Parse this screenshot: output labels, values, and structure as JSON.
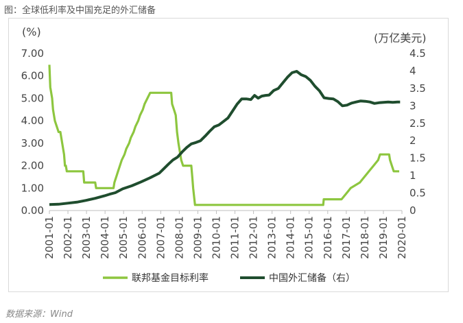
{
  "figure_title": "图：全球低利率及中国充足的外汇储备",
  "source": "数据来源：Wind",
  "colors": {
    "fed": "#8dc63f",
    "reserves": "#1f4d2e"
  },
  "chart_data": {
    "type": "line",
    "title": "",
    "left_axis": {
      "unit": "(%)",
      "min": 0,
      "max": 7,
      "ticks": [
        "0.00",
        "1.00",
        "2.00",
        "3.00",
        "4.00",
        "5.00",
        "6.00",
        "7.00"
      ]
    },
    "right_axis": {
      "unit": "(万亿美元)",
      "min": 0,
      "max": 4.5,
      "ticks": [
        "0",
        "0.5",
        "1",
        "1.5",
        "2",
        "2.5",
        "3",
        "3.5",
        "4",
        "4.5"
      ]
    },
    "x_ticks": [
      "2001-01",
      "2002-01",
      "2003-01",
      "2004-01",
      "2005-01",
      "2006-01",
      "2007-01",
      "2008-01",
      "2009-01",
      "2010-01",
      "2011-01",
      "2012-01",
      "2013-01",
      "2014-01",
      "2015-01",
      "2016-01",
      "2017-01",
      "2018-01",
      "2019-01",
      "2020-01"
    ],
    "x_range": [
      2001.0,
      2020.25
    ],
    "legend": [
      "联邦基金目标利率",
      "中国外汇储备（右）"
    ],
    "series": [
      {
        "name": "联邦基金目标利率",
        "axis": "left",
        "points": [
          [
            2001.0,
            6.5
          ],
          [
            2001.05,
            5.5
          ],
          [
            2001.15,
            5.0
          ],
          [
            2001.2,
            4.5
          ],
          [
            2001.3,
            4.0
          ],
          [
            2001.4,
            3.75
          ],
          [
            2001.5,
            3.5
          ],
          [
            2001.6,
            3.5
          ],
          [
            2001.7,
            3.0
          ],
          [
            2001.8,
            2.5
          ],
          [
            2001.85,
            2.0
          ],
          [
            2001.9,
            2.0
          ],
          [
            2001.95,
            1.75
          ],
          [
            2002.85,
            1.75
          ],
          [
            2002.9,
            1.25
          ],
          [
            2003.5,
            1.25
          ],
          [
            2003.55,
            1.0
          ],
          [
            2004.5,
            1.0
          ],
          [
            2004.55,
            1.25
          ],
          [
            2004.65,
            1.5
          ],
          [
            2004.75,
            1.75
          ],
          [
            2004.85,
            2.0
          ],
          [
            2004.95,
            2.25
          ],
          [
            2005.1,
            2.5
          ],
          [
            2005.2,
            2.75
          ],
          [
            2005.35,
            3.0
          ],
          [
            2005.45,
            3.25
          ],
          [
            2005.6,
            3.5
          ],
          [
            2005.7,
            3.75
          ],
          [
            2005.85,
            4.0
          ],
          [
            2005.95,
            4.25
          ],
          [
            2006.1,
            4.5
          ],
          [
            2006.2,
            4.75
          ],
          [
            2006.35,
            5.0
          ],
          [
            2006.5,
            5.25
          ],
          [
            2007.65,
            5.25
          ],
          [
            2007.7,
            4.75
          ],
          [
            2007.8,
            4.5
          ],
          [
            2007.9,
            4.25
          ],
          [
            2007.97,
            3.5
          ],
          [
            2008.05,
            3.0
          ],
          [
            2008.2,
            2.25
          ],
          [
            2008.3,
            2.0
          ],
          [
            2008.75,
            2.0
          ],
          [
            2008.8,
            1.5
          ],
          [
            2008.85,
            1.0
          ],
          [
            2008.95,
            0.25
          ],
          [
            2015.95,
            0.25
          ],
          [
            2015.98,
            0.5
          ],
          [
            2016.95,
            0.5
          ],
          [
            2017.2,
            0.75
          ],
          [
            2017.45,
            1.0
          ],
          [
            2017.95,
            1.25
          ],
          [
            2018.2,
            1.5
          ],
          [
            2018.45,
            1.75
          ],
          [
            2018.7,
            2.0
          ],
          [
            2018.95,
            2.25
          ],
          [
            2019.05,
            2.5
          ],
          [
            2019.55,
            2.5
          ],
          [
            2019.6,
            2.25
          ],
          [
            2019.7,
            2.0
          ],
          [
            2019.8,
            1.75
          ],
          [
            2020.1,
            1.75
          ]
        ]
      },
      {
        "name": "中国外汇储备（右）",
        "axis": "right",
        "points": [
          [
            2001.0,
            0.17
          ],
          [
            2001.5,
            0.18
          ],
          [
            2002.0,
            0.21
          ],
          [
            2002.5,
            0.24
          ],
          [
            2003.0,
            0.29
          ],
          [
            2003.5,
            0.35
          ],
          [
            2004.0,
            0.42
          ],
          [
            2004.3,
            0.47
          ],
          [
            2004.6,
            0.51
          ],
          [
            2005.0,
            0.62
          ],
          [
            2005.5,
            0.71
          ],
          [
            2006.0,
            0.82
          ],
          [
            2006.5,
            0.94
          ],
          [
            2007.0,
            1.07
          ],
          [
            2007.25,
            1.2
          ],
          [
            2007.5,
            1.33
          ],
          [
            2007.75,
            1.45
          ],
          [
            2008.0,
            1.53
          ],
          [
            2008.25,
            1.68
          ],
          [
            2008.5,
            1.81
          ],
          [
            2008.75,
            1.91
          ],
          [
            2009.0,
            1.95
          ],
          [
            2009.25,
            2.0
          ],
          [
            2009.5,
            2.13
          ],
          [
            2009.75,
            2.27
          ],
          [
            2010.0,
            2.4
          ],
          [
            2010.25,
            2.45
          ],
          [
            2010.5,
            2.55
          ],
          [
            2010.75,
            2.65
          ],
          [
            2011.0,
            2.85
          ],
          [
            2011.25,
            3.05
          ],
          [
            2011.5,
            3.2
          ],
          [
            2011.75,
            3.2
          ],
          [
            2012.0,
            3.18
          ],
          [
            2012.2,
            3.3
          ],
          [
            2012.4,
            3.22
          ],
          [
            2012.6,
            3.28
          ],
          [
            2012.8,
            3.3
          ],
          [
            2013.0,
            3.31
          ],
          [
            2013.25,
            3.44
          ],
          [
            2013.5,
            3.5
          ],
          [
            2013.75,
            3.66
          ],
          [
            2014.0,
            3.82
          ],
          [
            2014.25,
            3.95
          ],
          [
            2014.5,
            3.99
          ],
          [
            2014.75,
            3.89
          ],
          [
            2015.0,
            3.84
          ],
          [
            2015.25,
            3.73
          ],
          [
            2015.5,
            3.56
          ],
          [
            2015.75,
            3.43
          ],
          [
            2016.0,
            3.23
          ],
          [
            2016.25,
            3.21
          ],
          [
            2016.5,
            3.2
          ],
          [
            2016.75,
            3.12
          ],
          [
            2017.0,
            3.0
          ],
          [
            2017.25,
            3.02
          ],
          [
            2017.5,
            3.08
          ],
          [
            2017.75,
            3.11
          ],
          [
            2018.0,
            3.14
          ],
          [
            2018.25,
            3.13
          ],
          [
            2018.5,
            3.11
          ],
          [
            2018.75,
            3.07
          ],
          [
            2019.0,
            3.09
          ],
          [
            2019.25,
            3.1
          ],
          [
            2019.5,
            3.11
          ],
          [
            2019.75,
            3.1
          ],
          [
            2020.0,
            3.11
          ],
          [
            2020.15,
            3.11
          ]
        ]
      }
    ]
  }
}
